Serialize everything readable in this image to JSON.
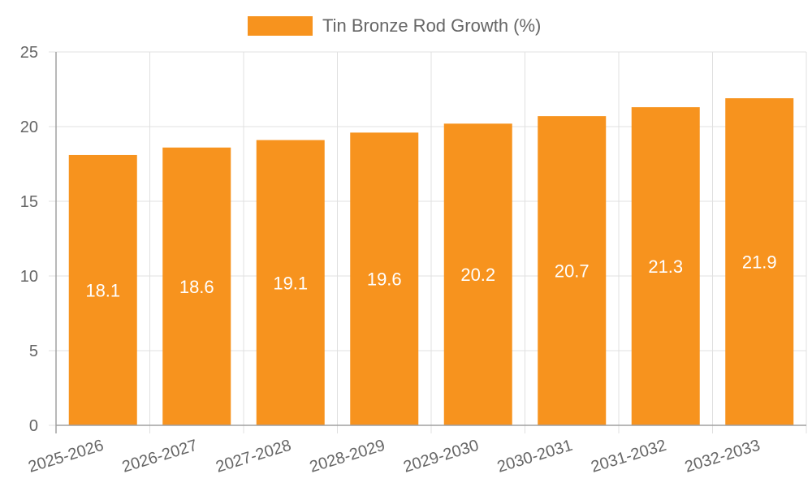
{
  "chart_data": {
    "type": "bar",
    "title": "",
    "xlabel": "",
    "ylabel": "",
    "categories": [
      "2025-2026",
      "2026-2027",
      "2027-2028",
      "2028-2029",
      "2029-2030",
      "2030-2031",
      "2031-2032",
      "2032-2033"
    ],
    "series": [
      {
        "name": "Tin Bronze Rod Growth (%)",
        "values": [
          18.1,
          18.6,
          19.1,
          19.6,
          20.2,
          20.7,
          21.3,
          21.9
        ],
        "color": "#f7931e"
      }
    ],
    "ylim": [
      0,
      25
    ],
    "yticks": [
      0,
      5,
      10,
      15,
      20,
      25
    ],
    "grid": true,
    "legend_position": "top",
    "data_labels": true
  },
  "legend": {
    "label": "Tin Bronze Rod Growth (%)",
    "color": "#f7931e"
  },
  "colors": {
    "grid": "#e0e0e0",
    "axis": "#a0a0a0",
    "text": "#666666",
    "bar": "#f7931e"
  }
}
